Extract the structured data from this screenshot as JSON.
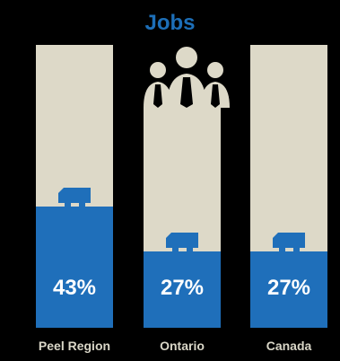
{
  "colors": {
    "background": "#000000",
    "column": "#ddd9c8",
    "fill": "#1f6fba",
    "title": "#1d6fb8",
    "label": "#d9d6c7"
  },
  "icons": [
    "people-icon",
    "truck-icon"
  ],
  "chart_data": {
    "type": "bar",
    "title": "Jobs",
    "categories": [
      "Peel Region",
      "Ontario",
      "Canada"
    ],
    "values": [
      43,
      27,
      27
    ],
    "value_labels": [
      "43%",
      "27%",
      "27%"
    ],
    "ylim": [
      0,
      100
    ],
    "xlabel": "",
    "ylabel": "",
    "grid": false
  }
}
